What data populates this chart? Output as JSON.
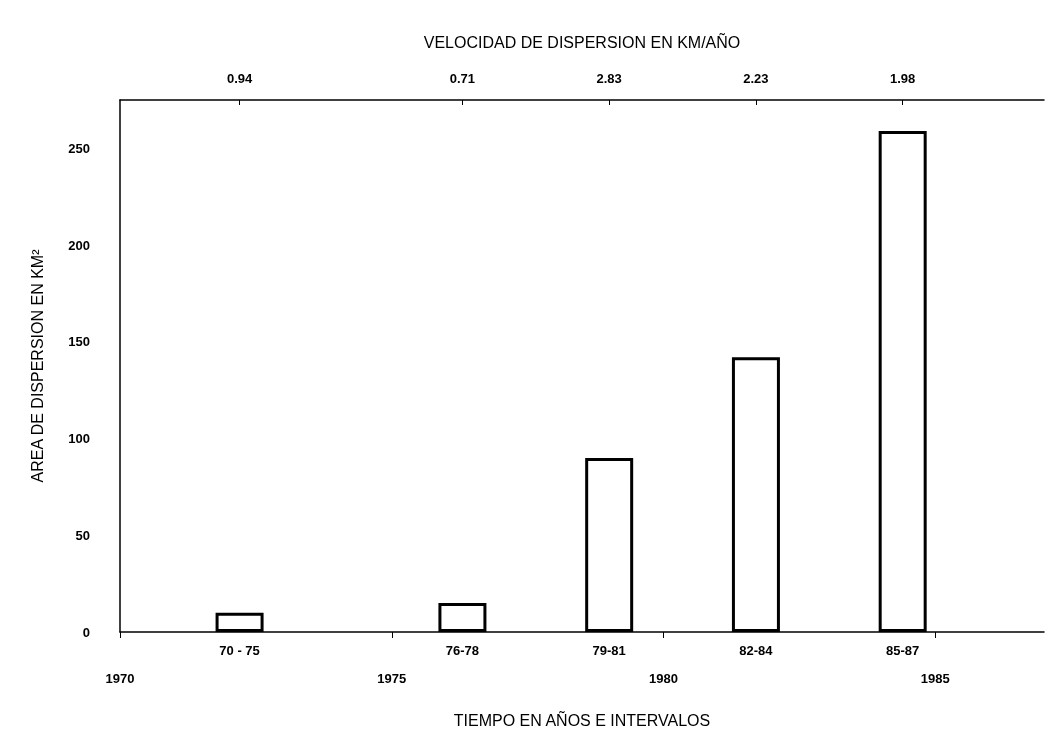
{
  "chart_data": {
    "type": "bar",
    "x": [
      1972.2,
      1976.3,
      1979.0,
      1981.7,
      1984.4
    ],
    "values": [
      10,
      15,
      90,
      142,
      259
    ],
    "color": "#000000",
    "xlim": [
      1970,
      1987
    ],
    "xticks": [
      1970,
      1975,
      1980,
      1985
    ],
    "ylim": [
      0,
      275
    ],
    "yticks": [
      0,
      50,
      100,
      150,
      200,
      250
    ],
    "xlabel": "TIEMPO EN AÑOS E INTERVALOS",
    "x2label": "VELOCIDAD DE DISPERSION EN KM/AÑO",
    "ylabel": "AREA DE DISPERSION EN KM²",
    "annotations": [
      "0.94",
      "0.71",
      "2.83",
      "2.23",
      "1.98",
      {
        "text": "70 - 75",
        "x": 1972.2,
        "y": 0
      },
      {
        "text": "76-78",
        "x": 1976.3,
        "y": 0
      },
      {
        "text": "79-81",
        "x": 1979.0,
        "y": 0
      },
      {
        "text": "82-84",
        "x": 1981.7,
        "y": 0
      },
      {
        "text": "85-87",
        "x": 1984.4,
        "y": 0
      }
    ],
    "grid": false
  }
}
